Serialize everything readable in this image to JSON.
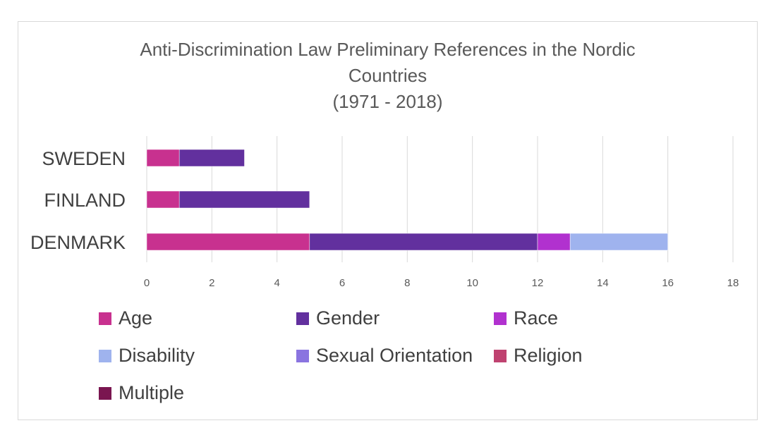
{
  "chart_data": {
    "type": "bar",
    "orientation": "horizontal",
    "stacked": true,
    "title": [
      "Anti-Discrimination Law Preliminary References in the Nordic",
      "Countries",
      "(1971 - 2018)"
    ],
    "categories": [
      "SWEDEN",
      "FINLAND",
      "DENMARK"
    ],
    "series": [
      {
        "name": "Age",
        "color": "#c8318f",
        "values": [
          1,
          1,
          5
        ]
      },
      {
        "name": "Gender",
        "color": "#62309e",
        "values": [
          2,
          4,
          7
        ]
      },
      {
        "name": "Race",
        "color": "#b131cf",
        "values": [
          0,
          0,
          1
        ]
      },
      {
        "name": "Disability",
        "color": "#9fb3ee",
        "values": [
          0,
          0,
          3
        ]
      },
      {
        "name": "Sexual Orientation",
        "color": "#8a74e0",
        "values": [
          0,
          0,
          0
        ]
      },
      {
        "name": "Religion",
        "color": "#bf4270",
        "values": [
          0,
          0,
          0
        ]
      },
      {
        "name": "Multiple",
        "color": "#7a1650",
        "values": [
          0,
          0,
          0
        ]
      }
    ],
    "xlim": [
      0,
      18
    ],
    "xticks": [
      0,
      2,
      4,
      6,
      8,
      10,
      12,
      14,
      16,
      18
    ],
    "grid": true,
    "legend": "bottom"
  }
}
